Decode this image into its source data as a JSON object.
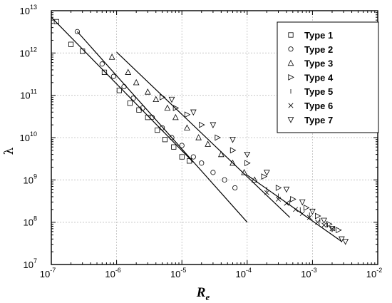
{
  "chart_data": {
    "type": "scatter",
    "title": "",
    "xlabel": "R",
    "xlabel_subscript": "e",
    "ylabel": "λ",
    "x_scale": "log",
    "y_scale": "log",
    "xlim": [
      1e-07,
      0.01
    ],
    "ylim": [
      10000000.0,
      10000000000000.0
    ],
    "grid": true,
    "legend_position": "top-right",
    "x_ticks": [
      {
        "base": "10",
        "exp": "-7",
        "value": 1e-07
      },
      {
        "base": "10",
        "exp": "-6",
        "value": 1e-06
      },
      {
        "base": "10",
        "exp": "-5",
        "value": 1e-05
      },
      {
        "base": "10",
        "exp": "-4",
        "value": 0.0001
      },
      {
        "base": "10",
        "exp": "-3",
        "value": 0.001
      },
      {
        "base": "10",
        "exp": "-2",
        "value": 0.01
      }
    ],
    "y_ticks": [
      {
        "base": "10",
        "exp": "7",
        "value": 10000000.0
      },
      {
        "base": "10",
        "exp": "8",
        "value": 100000000.0
      },
      {
        "base": "10",
        "exp": "9",
        "value": 1000000000.0
      },
      {
        "base": "10",
        "exp": "10",
        "value": 10000000000.0
      },
      {
        "base": "10",
        "exp": "11",
        "value": 100000000000.0
      },
      {
        "base": "10",
        "exp": "12",
        "value": 1000000000000.0
      },
      {
        "base": "10",
        "exp": "13",
        "value": 10000000000000.0
      }
    ],
    "series": [
      {
        "name": "Type 1",
        "marker": "square",
        "x": [
          1.2e-07,
          2e-07,
          3e-07,
          6.5e-07,
          1.1e-06,
          1.6e-06,
          2.2e-06,
          3e-06,
          4.2e-06,
          5.5e-06,
          7.5e-06,
          1e-05,
          1.3e-05
        ],
        "y": [
          5500000000000.0,
          1600000000000.0,
          1100000000000.0,
          350000000000.0,
          130000000000.0,
          65000000000.0,
          45000000000.0,
          30000000000.0,
          15000000000.0,
          9000000000.0,
          6000000000.0,
          3500000000.0,
          2800000000.0
        ]
      },
      {
        "name": "Type 2",
        "marker": "circle",
        "x": [
          2.5e-07,
          6e-07,
          9e-07,
          1.3e-06,
          1.8e-06,
          2.5e-06,
          3.5e-06,
          5e-06,
          7e-06,
          1e-05,
          1.5e-05,
          2e-05,
          3e-05,
          4.5e-05,
          6.5e-05
        ],
        "y": [
          3200000000000.0,
          550000000000.0,
          280000000000.0,
          160000000000.0,
          85000000000.0,
          50000000000.0,
          30000000000.0,
          17000000000.0,
          10000000000.0,
          6500000000.0,
          3500000000.0,
          2500000000.0,
          1500000000.0,
          1000000000.0,
          650000000.0
        ]
      },
      {
        "name": "Type 3",
        "marker": "triangle-up",
        "x": [
          8.5e-07,
          1.5e-06,
          2e-06,
          3e-06,
          4e-06,
          6e-06,
          8e-06,
          1.2e-05,
          1.8e-05,
          2.5e-05,
          4e-05,
          6e-05,
          9e-05,
          0.00013
        ],
        "y": [
          800000000000.0,
          350000000000.0,
          200000000000.0,
          120000000000.0,
          80000000000.0,
          50000000000.0,
          30000000000.0,
          17000000000.0,
          10000000000.0,
          7000000000.0,
          4000000000.0,
          2500000000.0,
          1500000000.0,
          1000000000.0
        ]
      },
      {
        "name": "Type 4",
        "marker": "triangle-right",
        "x": [
          5e-06,
          8e-06,
          1.2e-05,
          2e-05,
          3.5e-05,
          6e-05,
          0.0001,
          0.00018,
          0.0003,
          0.0005,
          0.0008,
          0.0012,
          0.0018,
          0.0025
        ],
        "y": [
          90000000000.0,
          50000000000.0,
          35000000000.0,
          20000000000.0,
          10000000000.0,
          5000000000.0,
          2500000000.0,
          1200000000.0,
          650000000.0,
          350000000.0,
          220000000.0,
          140000000.0,
          90000000.0,
          65000000.0
        ]
      },
      {
        "name": "Type 5",
        "marker": "dash",
        "x": [
          0.0002,
          0.0003,
          0.00045,
          0.00065,
          0.0009,
          0.0013,
          0.0017,
          0.0022
        ],
        "y": [
          600000000.0,
          420000000.0,
          300000000.0,
          200000000.0,
          150000000.0,
          110000000.0,
          85000000.0,
          70000000.0
        ]
      },
      {
        "name": "Type 6",
        "marker": "cross",
        "x": [
          0.0002,
          0.0003,
          0.0004,
          0.00055,
          0.0007,
          0.0009,
          0.0012,
          0.0015,
          0.002
        ],
        "y": [
          500000000.0,
          350000000.0,
          280000000.0,
          200000000.0,
          160000000.0,
          130000000.0,
          100000000.0,
          85000000.0,
          70000000.0
        ]
      },
      {
        "name": "Type 7",
        "marker": "triangle-down",
        "x": [
          7e-06,
          1.5e-05,
          3e-05,
          6e-05,
          0.0001,
          0.0002,
          0.0004,
          0.0007,
          0.001,
          0.0015,
          0.002,
          0.0028,
          0.0032
        ],
        "y": [
          80000000000.0,
          40000000000.0,
          20000000000.0,
          9000000000.0,
          4000000000.0,
          1500000000.0,
          600000000.0,
          300000000.0,
          180000000.0,
          110000000.0,
          70000000.0,
          40000000.0,
          35000000.0
        ]
      }
    ],
    "fit_lines": [
      {
        "x": [
          1e-07,
          1.5e-05
        ],
        "y": [
          7000000000000.0,
          2600000000.0
        ]
      },
      {
        "x": [
          2.5e-07,
          0.0001
        ],
        "y": [
          3200000000000.0,
          100000000.0
        ]
      },
      {
        "x": [
          1e-06,
          0.00045
        ],
        "y": [
          1050000000000.0,
          130000000.0
        ]
      },
      {
        "x": [
          0.0001,
          0.0028
        ],
        "y": [
          1300000000.0,
          35000000.0
        ]
      }
    ]
  }
}
